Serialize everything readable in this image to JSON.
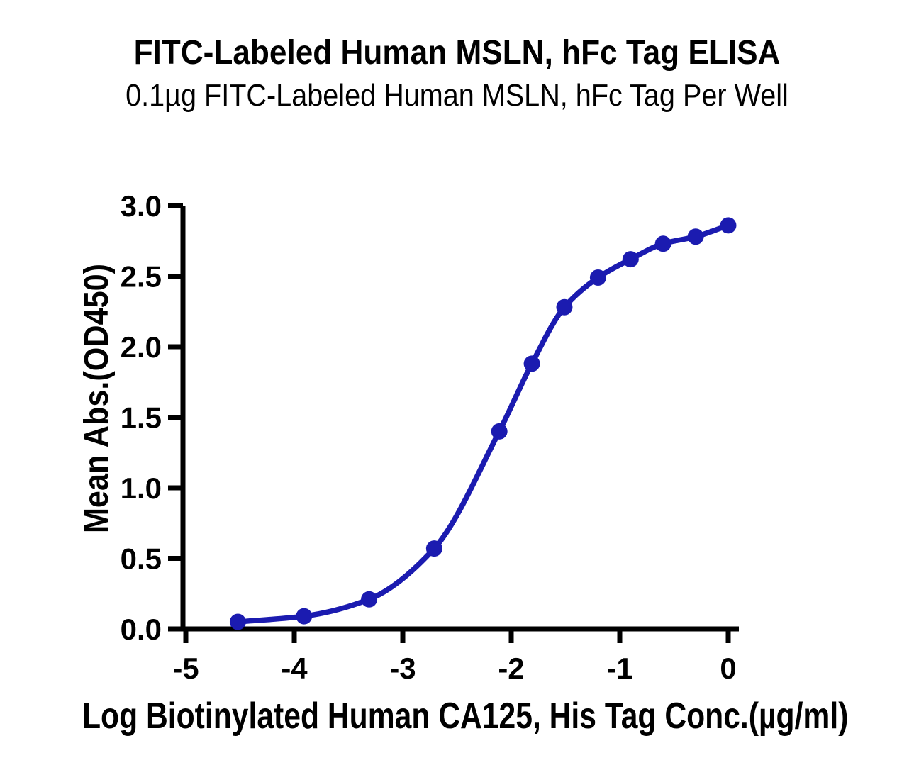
{
  "chart_data": {
    "type": "scatter",
    "curve": "sigmoidal dose-response fit line through points",
    "title": "FITC-Labeled Human MSLN, hFc Tag ELISA",
    "subtitle": "0.1µg FITC-Labeled Human MSLN, hFc Tag Per Well",
    "xlabel": "Log Biotinylated Human CA125, His Tag Conc.(µg/ml)",
    "ylabel": "Mean Abs.(OD450)",
    "x_tick_labels": [
      "-5",
      "-4",
      "-3",
      "-2",
      "-1",
      "0"
    ],
    "y_tick_labels": [
      "0.0",
      "0.5",
      "1.0",
      "1.5",
      "2.0",
      "2.5",
      "3.0"
    ],
    "xlim": [
      -5,
      0
    ],
    "ylim": [
      0,
      3
    ],
    "grid": false,
    "legend": "none",
    "series": [
      {
        "x": [
          -4.52,
          -3.91,
          -3.31,
          -2.71,
          -2.11,
          -1.81,
          -1.51,
          -1.2,
          -0.9,
          -0.6,
          -0.3,
          0
        ],
        "y": [
          0.05,
          0.09,
          0.21,
          0.57,
          1.4,
          1.88,
          2.28,
          2.49,
          2.62,
          2.73,
          2.78,
          2.86
        ]
      }
    ],
    "colors": {
      "series": "#1B1BB0",
      "axis": "#000000",
      "text": "#000000",
      "background": "#FFFFFF"
    }
  }
}
